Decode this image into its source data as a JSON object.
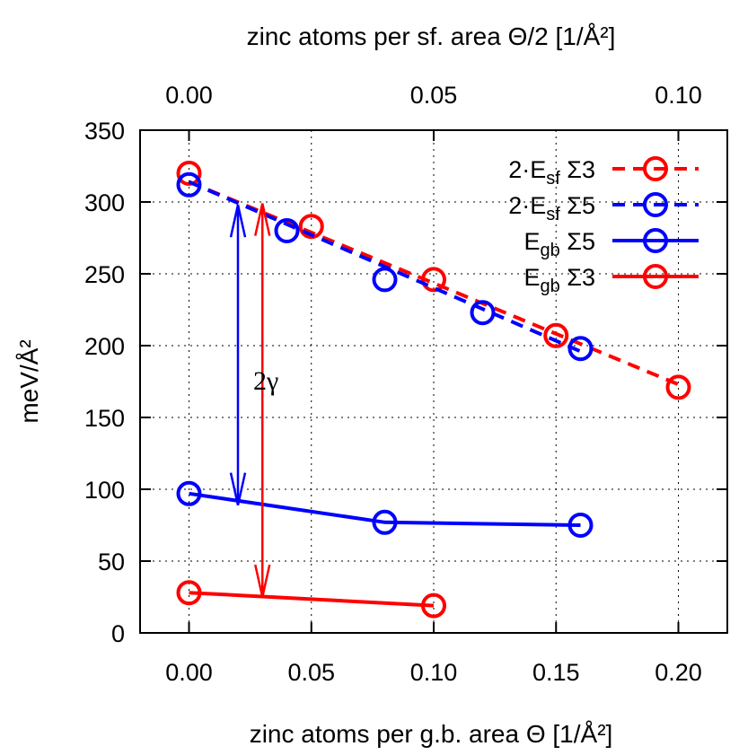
{
  "chart_data": {
    "type": "line",
    "title": "",
    "xlabel_bottom": "zinc atoms per g.b. area Θ [1/Å²]",
    "xlabel_top": "zinc atoms per sf. area Θ/2 [1/Å²]",
    "ylabel": "meV/Å²",
    "xlim": [
      -0.02,
      0.22
    ],
    "ylim": [
      0,
      350
    ],
    "xlim_top": [
      -0.01,
      0.11
    ],
    "x_ticks": [
      "0.00",
      "0.05",
      "0.10",
      "0.15",
      "0.20"
    ],
    "x_top_ticks": [
      "0.00",
      "0.05",
      "0.10"
    ],
    "y_ticks": [
      "0",
      "50",
      "100",
      "150",
      "200",
      "250",
      "300",
      "350"
    ],
    "grid": true,
    "legend_position": "top-right",
    "series": [
      {
        "name": "2·E_sf Σ3",
        "label_main": "2·E",
        "label_sub": "sf",
        "label_tail": "Σ3",
        "color": "#ff0000",
        "style": "dashed",
        "axis": "top",
        "x": [
          0.0,
          0.025,
          0.05,
          0.075,
          0.1
        ],
        "y": [
          320,
          283,
          246,
          207,
          171
        ],
        "fit": {
          "x": [
            0.0,
            0.1
          ],
          "y": [
            314,
            173
          ]
        }
      },
      {
        "name": "2·E_sf Σ5",
        "label_main": "2·E",
        "label_sub": "sf",
        "label_tail": "Σ5",
        "color": "#0000ff",
        "style": "dashed",
        "axis": "top",
        "x": [
          0.0,
          0.02,
          0.04,
          0.06,
          0.08
        ],
        "y": [
          312,
          280,
          246,
          223,
          198
        ],
        "fit": {
          "x": [
            0.0,
            0.08
          ],
          "y": [
            314,
            196
          ]
        }
      },
      {
        "name": "E_gb Σ5",
        "label_main": "E",
        "label_sub": "gb",
        "label_tail": "Σ5",
        "color": "#0000ff",
        "style": "solid",
        "axis": "bottom",
        "x": [
          0.0,
          0.08,
          0.16
        ],
        "y": [
          97,
          77,
          75
        ]
      },
      {
        "name": "E_gb Σ3",
        "label_main": "E",
        "label_sub": "gb",
        "label_tail": "Σ3",
        "color": "#ff0000",
        "style": "solid",
        "axis": "bottom",
        "x": [
          0.0,
          0.1
        ],
        "y": [
          28,
          19
        ]
      }
    ],
    "annotations": [
      {
        "text": "2γ"
      }
    ],
    "arrows": [
      {
        "color": "#0000ff",
        "x": 0.02,
        "y_from": 89,
        "y_to": 298
      },
      {
        "color": "#ff0000",
        "x": 0.03,
        "y_from": 25,
        "y_to": 299
      }
    ]
  }
}
